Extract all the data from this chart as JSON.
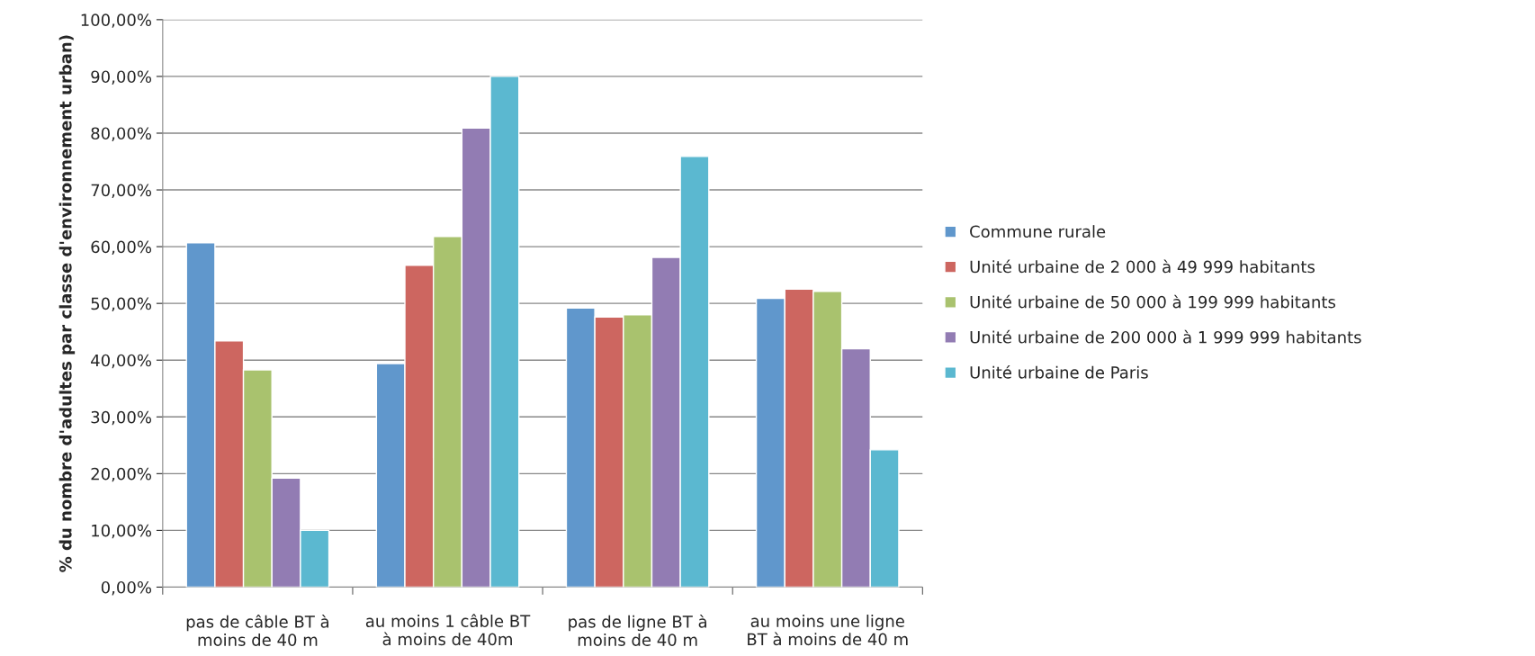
{
  "chart_data": {
    "type": "bar",
    "ylabel": "% du nombre d'adultes par classe d'environnement urban)",
    "categories": [
      "pas de câble BT à\nmoins de 40 m",
      "au moins 1 câble BT\nà moins de 40m",
      "pas de ligne BT à\nmoins de 40 m",
      "au moins une ligne\nBT à moins de 40 m"
    ],
    "series": [
      {
        "name": "Commune rurale",
        "color": "#6097cc",
        "values": [
          60.7,
          39.4,
          49.2,
          50.9
        ]
      },
      {
        "name": "Unité urbaine de 2 000 à 49 999 habitants",
        "color": "#cd6660",
        "values": [
          43.4,
          56.7,
          47.6,
          52.5
        ]
      },
      {
        "name": "Unité urbaine de 50 000 à 199 999 habitants",
        "color": "#a9c26e",
        "values": [
          38.3,
          61.8,
          48.0,
          52.1
        ]
      },
      {
        "name": "Unité urbaine de 200 000 à 1 999 999 habitants",
        "color": "#927cb3",
        "values": [
          19.2,
          80.9,
          58.1,
          42.0
        ]
      },
      {
        "name": "Unité urbaine de Paris",
        "color": "#5bb8d0",
        "values": [
          10.0,
          90.0,
          75.9,
          24.2
        ]
      }
    ],
    "ylim": [
      0,
      100
    ],
    "yticks": [
      {
        "value": 0,
        "label": "0,00%"
      },
      {
        "value": 10,
        "label": "10,00%"
      },
      {
        "value": 20,
        "label": "20,00%"
      },
      {
        "value": 30,
        "label": "30,00%"
      },
      {
        "value": 40,
        "label": "40,00%"
      },
      {
        "value": 50,
        "label": "50,00%"
      },
      {
        "value": 60,
        "label": "60,00%"
      },
      {
        "value": 70,
        "label": "70,00%"
      },
      {
        "value": 80,
        "label": "80,00%"
      },
      {
        "value": 90,
        "label": "90,00%"
      },
      {
        "value": 100,
        "label": "100,00%"
      }
    ],
    "grid": "y",
    "legend": "right"
  }
}
